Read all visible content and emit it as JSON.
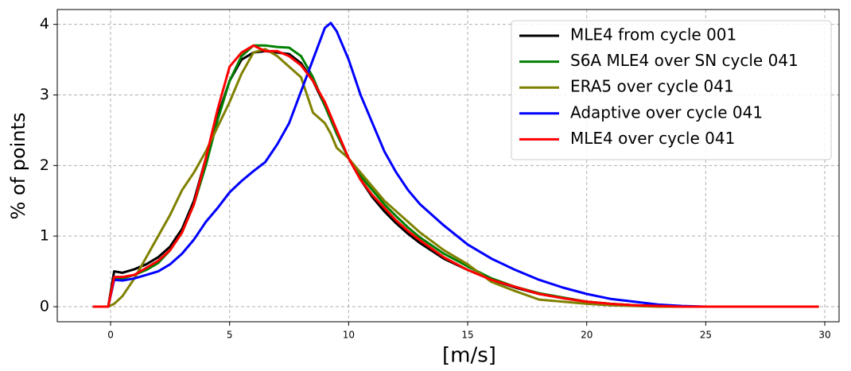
{
  "chart_data": {
    "type": "line",
    "xlabel": "[m/s]",
    "ylabel": "% of points",
    "x": [
      -0.75,
      -0.1,
      0.15,
      0.5,
      1,
      1.5,
      2,
      2.5,
      3,
      3.5,
      4,
      4.5,
      5,
      5.5,
      6,
      6.5,
      7,
      7.5,
      8,
      8.5,
      9,
      9.25,
      9.5,
      10,
      10.5,
      11,
      11.5,
      12,
      12.5,
      13,
      14,
      15,
      16,
      17,
      18,
      19,
      20,
      21,
      22,
      23,
      24,
      25,
      27,
      29.75
    ],
    "series": [
      {
        "name": "MLE4 from cycle 001",
        "color": "#000000",
        "values": [
          0,
          0,
          0.5,
          0.48,
          0.53,
          0.6,
          0.7,
          0.85,
          1.1,
          1.5,
          2.1,
          2.7,
          3.2,
          3.5,
          3.6,
          3.62,
          3.6,
          3.58,
          3.45,
          3.2,
          2.85,
          2.65,
          2.45,
          2.1,
          1.8,
          1.55,
          1.35,
          1.18,
          1.03,
          0.9,
          0.68,
          0.52,
          0.38,
          0.27,
          0.18,
          0.12,
          0.07,
          0.04,
          0.02,
          0.01,
          0,
          0,
          0,
          0
        ]
      },
      {
        "name": "S6A MLE4 over SN cycle 041",
        "color": "#008000",
        "values": [
          0,
          0,
          0.4,
          0.4,
          0.45,
          0.52,
          0.62,
          0.8,
          1.05,
          1.45,
          2.0,
          2.65,
          3.2,
          3.55,
          3.7,
          3.7,
          3.68,
          3.67,
          3.55,
          3.25,
          2.85,
          2.65,
          2.45,
          2.1,
          1.85,
          1.65,
          1.45,
          1.28,
          1.12,
          0.98,
          0.75,
          0.57,
          0.4,
          0.28,
          0.19,
          0.13,
          0.07,
          0.04,
          0.02,
          0.01,
          0,
          0,
          0,
          0
        ]
      },
      {
        "name": "ERA5 over cycle 041",
        "color": "#808000",
        "values": [
          0,
          0,
          0.04,
          0.15,
          0.4,
          0.7,
          1.0,
          1.3,
          1.65,
          1.9,
          2.2,
          2.55,
          2.9,
          3.3,
          3.6,
          3.65,
          3.55,
          3.4,
          3.25,
          2.75,
          2.6,
          2.45,
          2.25,
          2.1,
          1.9,
          1.7,
          1.5,
          1.35,
          1.2,
          1.05,
          0.8,
          0.6,
          0.35,
          0.22,
          0.1,
          0.07,
          0.04,
          0.02,
          0.01,
          0,
          0,
          0,
          0,
          0
        ]
      },
      {
        "name": "Adaptive over cycle 041",
        "color": "#0000ff",
        "values": [
          0,
          0,
          0.38,
          0.37,
          0.4,
          0.45,
          0.5,
          0.6,
          0.75,
          0.95,
          1.2,
          1.4,
          1.62,
          1.78,
          1.92,
          2.05,
          2.3,
          2.6,
          3.05,
          3.5,
          3.95,
          4.02,
          3.9,
          3.5,
          3.0,
          2.6,
          2.2,
          1.9,
          1.65,
          1.45,
          1.15,
          0.88,
          0.68,
          0.52,
          0.38,
          0.27,
          0.18,
          0.11,
          0.07,
          0.03,
          0.01,
          0,
          0,
          0
        ]
      },
      {
        "name": "MLE4 over cycle 041",
        "color": "#ff0000",
        "values": [
          0,
          0,
          0.42,
          0.42,
          0.45,
          0.55,
          0.65,
          0.8,
          1.05,
          1.45,
          2.1,
          2.8,
          3.4,
          3.6,
          3.7,
          3.62,
          3.62,
          3.55,
          3.42,
          3.2,
          2.9,
          2.7,
          2.5,
          2.1,
          1.8,
          1.58,
          1.4,
          1.22,
          1.07,
          0.94,
          0.7,
          0.52,
          0.38,
          0.28,
          0.18,
          0.12,
          0.07,
          0.04,
          0.02,
          0.01,
          0,
          0,
          0,
          0
        ]
      }
    ],
    "xlim": [
      -2.24,
      30.6
    ],
    "ylim": [
      -0.214,
      4.21
    ],
    "xticks": [
      0,
      5,
      10,
      15,
      20,
      25,
      30
    ],
    "yticks": [
      0,
      1,
      2,
      3,
      4
    ],
    "grid": true,
    "legend": "upper right"
  }
}
